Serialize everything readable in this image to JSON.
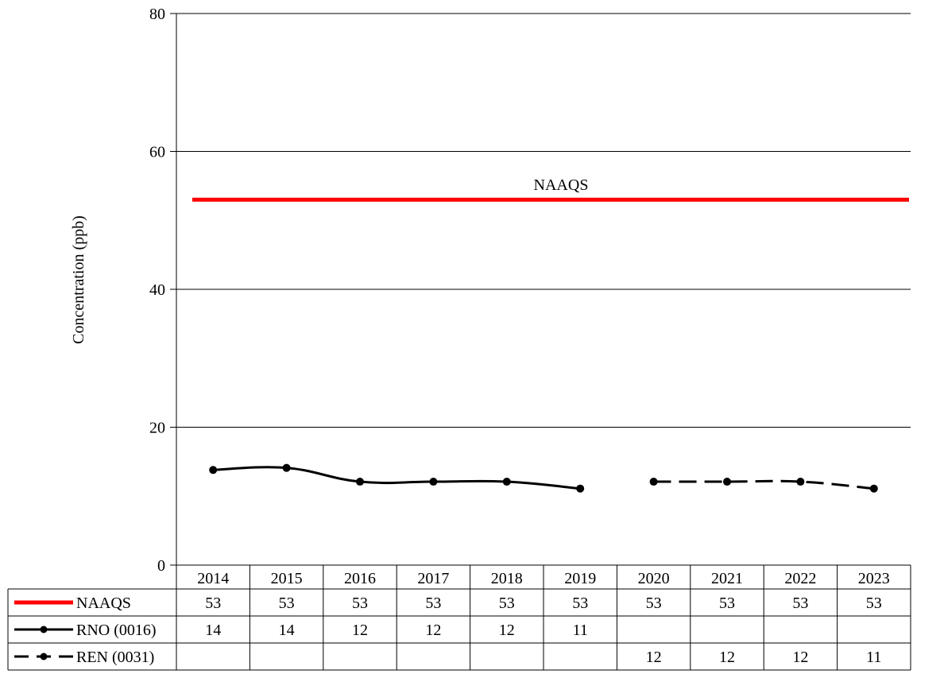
{
  "chart_data": {
    "type": "line",
    "title": "",
    "xlabel": "",
    "ylabel": "Concentration (ppb)",
    "ylim": [
      0,
      80
    ],
    "yticks": [
      0,
      20,
      40,
      60,
      80
    ],
    "grid": true,
    "legend": "data-table-below",
    "categories": [
      "2014",
      "2015",
      "2016",
      "2017",
      "2018",
      "2019",
      "2020",
      "2021",
      "2022",
      "2023"
    ],
    "series": [
      {
        "name": "NAAQS",
        "color": "#ff0000",
        "style": "solid-thick",
        "markers": false,
        "values": [
          53,
          53,
          53,
          53,
          53,
          53,
          53,
          53,
          53,
          53
        ],
        "table_values": [
          "53",
          "53",
          "53",
          "53",
          "53",
          "53",
          "53",
          "53",
          "53",
          "53"
        ],
        "annotation": "NAAQS"
      },
      {
        "name": "RNO (0016)",
        "color": "#000000",
        "style": "solid",
        "markers": true,
        "values": [
          13.8,
          14.1,
          12.1,
          12.1,
          12.1,
          11.1,
          null,
          null,
          null,
          null
        ],
        "table_values": [
          "14",
          "14",
          "12",
          "12",
          "12",
          "11",
          "",
          "",
          "",
          ""
        ]
      },
      {
        "name": "REN (0031)",
        "color": "#000000",
        "style": "dashed",
        "markers": true,
        "values": [
          null,
          null,
          null,
          null,
          null,
          null,
          12.1,
          12.1,
          12.1,
          11.1
        ],
        "table_values": [
          "",
          "",
          "",
          "",
          "",
          "",
          "12",
          "12",
          "12",
          "11"
        ]
      }
    ]
  }
}
